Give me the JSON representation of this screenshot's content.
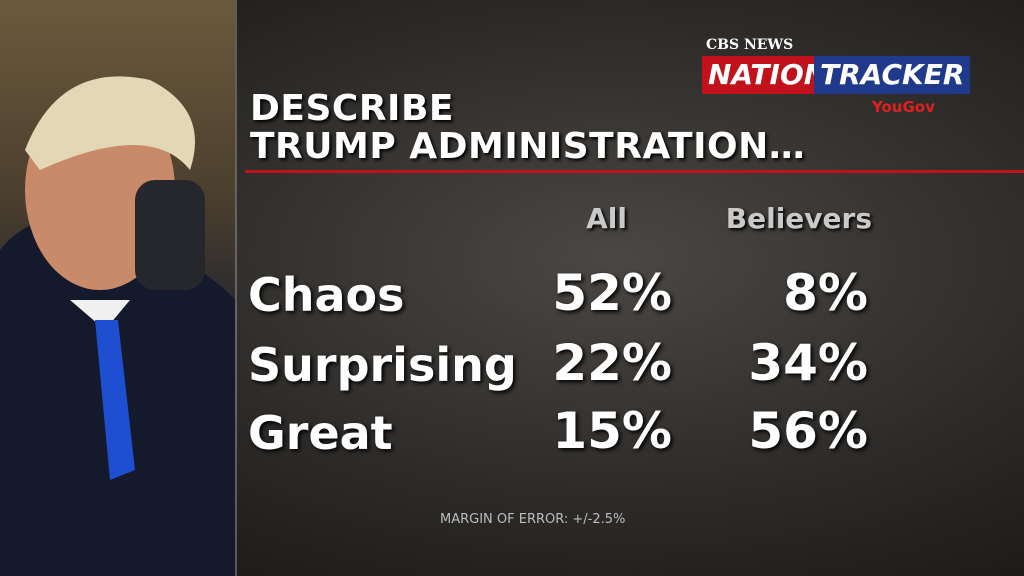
{
  "brand": {
    "network": "CBS NEWS",
    "tracker_left": "NATION",
    "tracker_right": "TRACKER",
    "partner": "YouGov"
  },
  "title": [
    "DESCRIBE",
    "TRUMP ADMINISTRATION…"
  ],
  "table": {
    "columns": [
      "All",
      "Believers"
    ],
    "rows": [
      [
        "Chaos",
        "52%",
        "8%"
      ],
      [
        "Surprising",
        "22%",
        "34%"
      ],
      [
        "Great",
        "15%",
        "56%"
      ]
    ]
  },
  "footnote": "MARGIN OF ERROR: +/-2.5%"
}
